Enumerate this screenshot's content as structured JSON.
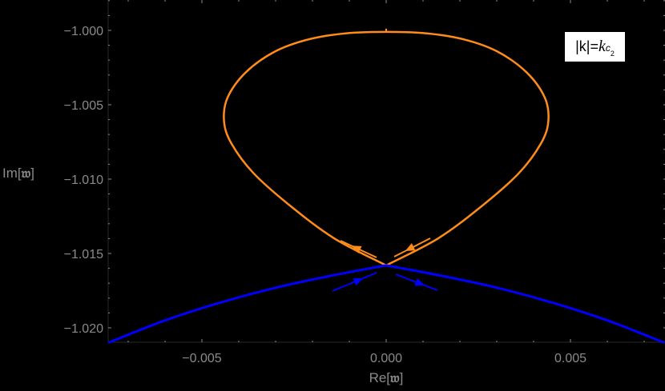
{
  "chart_data": {
    "type": "line",
    "title": "",
    "xlabel": "Re[𝔴]",
    "ylabel": "Im[𝔴]",
    "xlim": [
      -0.00754,
      0.00755
    ],
    "ylim": [
      -1.021,
      -0.998
    ],
    "x_ticks": [
      "-0.005",
      "0.000",
      "0.005"
    ],
    "x_tick_values": [
      -0.005,
      0.0,
      0.005
    ],
    "y_ticks": [
      "-1.000",
      "-1.005",
      "-1.010",
      "-1.015",
      "-1.020"
    ],
    "y_tick_values": [
      -1.0,
      -1.005,
      -1.01,
      -1.015,
      -1.02
    ],
    "grid": false,
    "background": "#000000",
    "annotation": "|k|=k_{c_2}",
    "series": [
      {
        "name": "orange loop",
        "color": "#ff8c1a",
        "x": [
          0.0,
          0.0014,
          0.0026,
          0.0036,
          0.0042,
          0.0044,
          0.0043,
          0.0038,
          0.003,
          0.0021,
          0.0011,
          0.0,
          -0.0011,
          -0.0021,
          -0.003,
          -0.0038,
          -0.0043,
          -0.0044,
          -0.0042,
          -0.0036,
          -0.0026,
          -0.0014,
          0.0
        ],
        "y": [
          -1.0158,
          -1.014,
          -1.0118,
          -1.0096,
          -1.0076,
          -1.0061,
          -1.0045,
          -1.0028,
          -1.0014,
          -1.0006,
          -1.0002,
          -1.0001,
          -1.0002,
          -1.0006,
          -1.0014,
          -1.0028,
          -1.0045,
          -1.0061,
          -1.0076,
          -1.0096,
          -1.0118,
          -1.014,
          -1.0158
        ],
        "direction_arrows": "toward crossing along lower branches"
      },
      {
        "name": "blue left branch",
        "color": "#0000ff",
        "x": [
          -0.00754,
          -0.006,
          -0.0045,
          -0.003,
          -0.0015,
          0.0
        ],
        "y": [
          -1.021,
          -1.0195,
          -1.0183,
          -1.0173,
          -1.0165,
          -1.0158
        ],
        "direction_arrows": "toward crossing"
      },
      {
        "name": "blue right branch",
        "color": "#0000ff",
        "x": [
          0.0,
          0.0015,
          0.003,
          0.0045,
          0.006,
          0.00755
        ],
        "y": [
          -1.0158,
          -1.0165,
          -1.0173,
          -1.0183,
          -1.0195,
          -1.021
        ],
        "direction_arrows": "away from crossing"
      }
    ],
    "crossing_point": [
      0.0,
      -1.0158
    ]
  },
  "legend": {
    "prefix": "|k|=",
    "k": "k",
    "c": "c",
    "sub": "2"
  },
  "axes": {
    "x_label_prefix": "Re[",
    "y_label_prefix": "Im[",
    "label_symbol": "𝔴",
    "label_suffix": "]"
  }
}
